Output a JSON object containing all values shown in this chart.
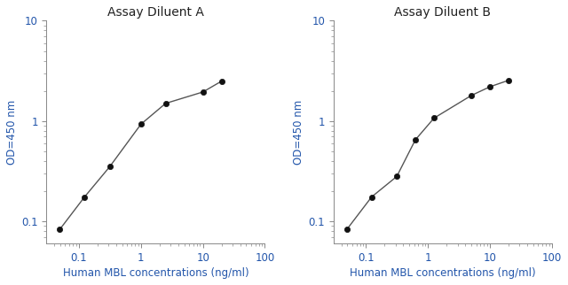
{
  "panel_A": {
    "title": "Assay Diluent A",
    "x": [
      0.049,
      0.123,
      0.313,
      1.0,
      2.5,
      10.0,
      20.0
    ],
    "y": [
      0.083,
      0.175,
      0.35,
      0.93,
      1.5,
      1.95,
      2.5
    ]
  },
  "panel_B": {
    "title": "Assay Diluent B",
    "x": [
      0.049,
      0.123,
      0.313,
      0.625,
      1.25,
      5.0,
      10.0,
      20.0
    ],
    "y": [
      0.083,
      0.175,
      0.28,
      0.65,
      1.07,
      1.8,
      2.2,
      2.55
    ]
  },
  "xlabel": "Human MBL concentrations (ng/ml)",
  "ylabel": "OD=450 nm",
  "xlim": [
    0.03,
    100
  ],
  "ylim": [
    0.06,
    10
  ],
  "xtick_positions": [
    0.1,
    1,
    10,
    100
  ],
  "xtick_labels": [
    "0.1",
    "1",
    "10",
    "100"
  ],
  "ytick_positions": [
    0.1,
    1,
    10
  ],
  "ytick_labels": [
    "0.1",
    "1",
    "10"
  ],
  "line_color": "#555555",
  "marker_color": "#111111",
  "label_color": "#2255aa",
  "title_color": "#222222",
  "title_fontsize": 10,
  "label_fontsize": 8.5,
  "tick_fontsize": 8.5,
  "figsize": [
    6.4,
    3.22
  ],
  "dpi": 100
}
